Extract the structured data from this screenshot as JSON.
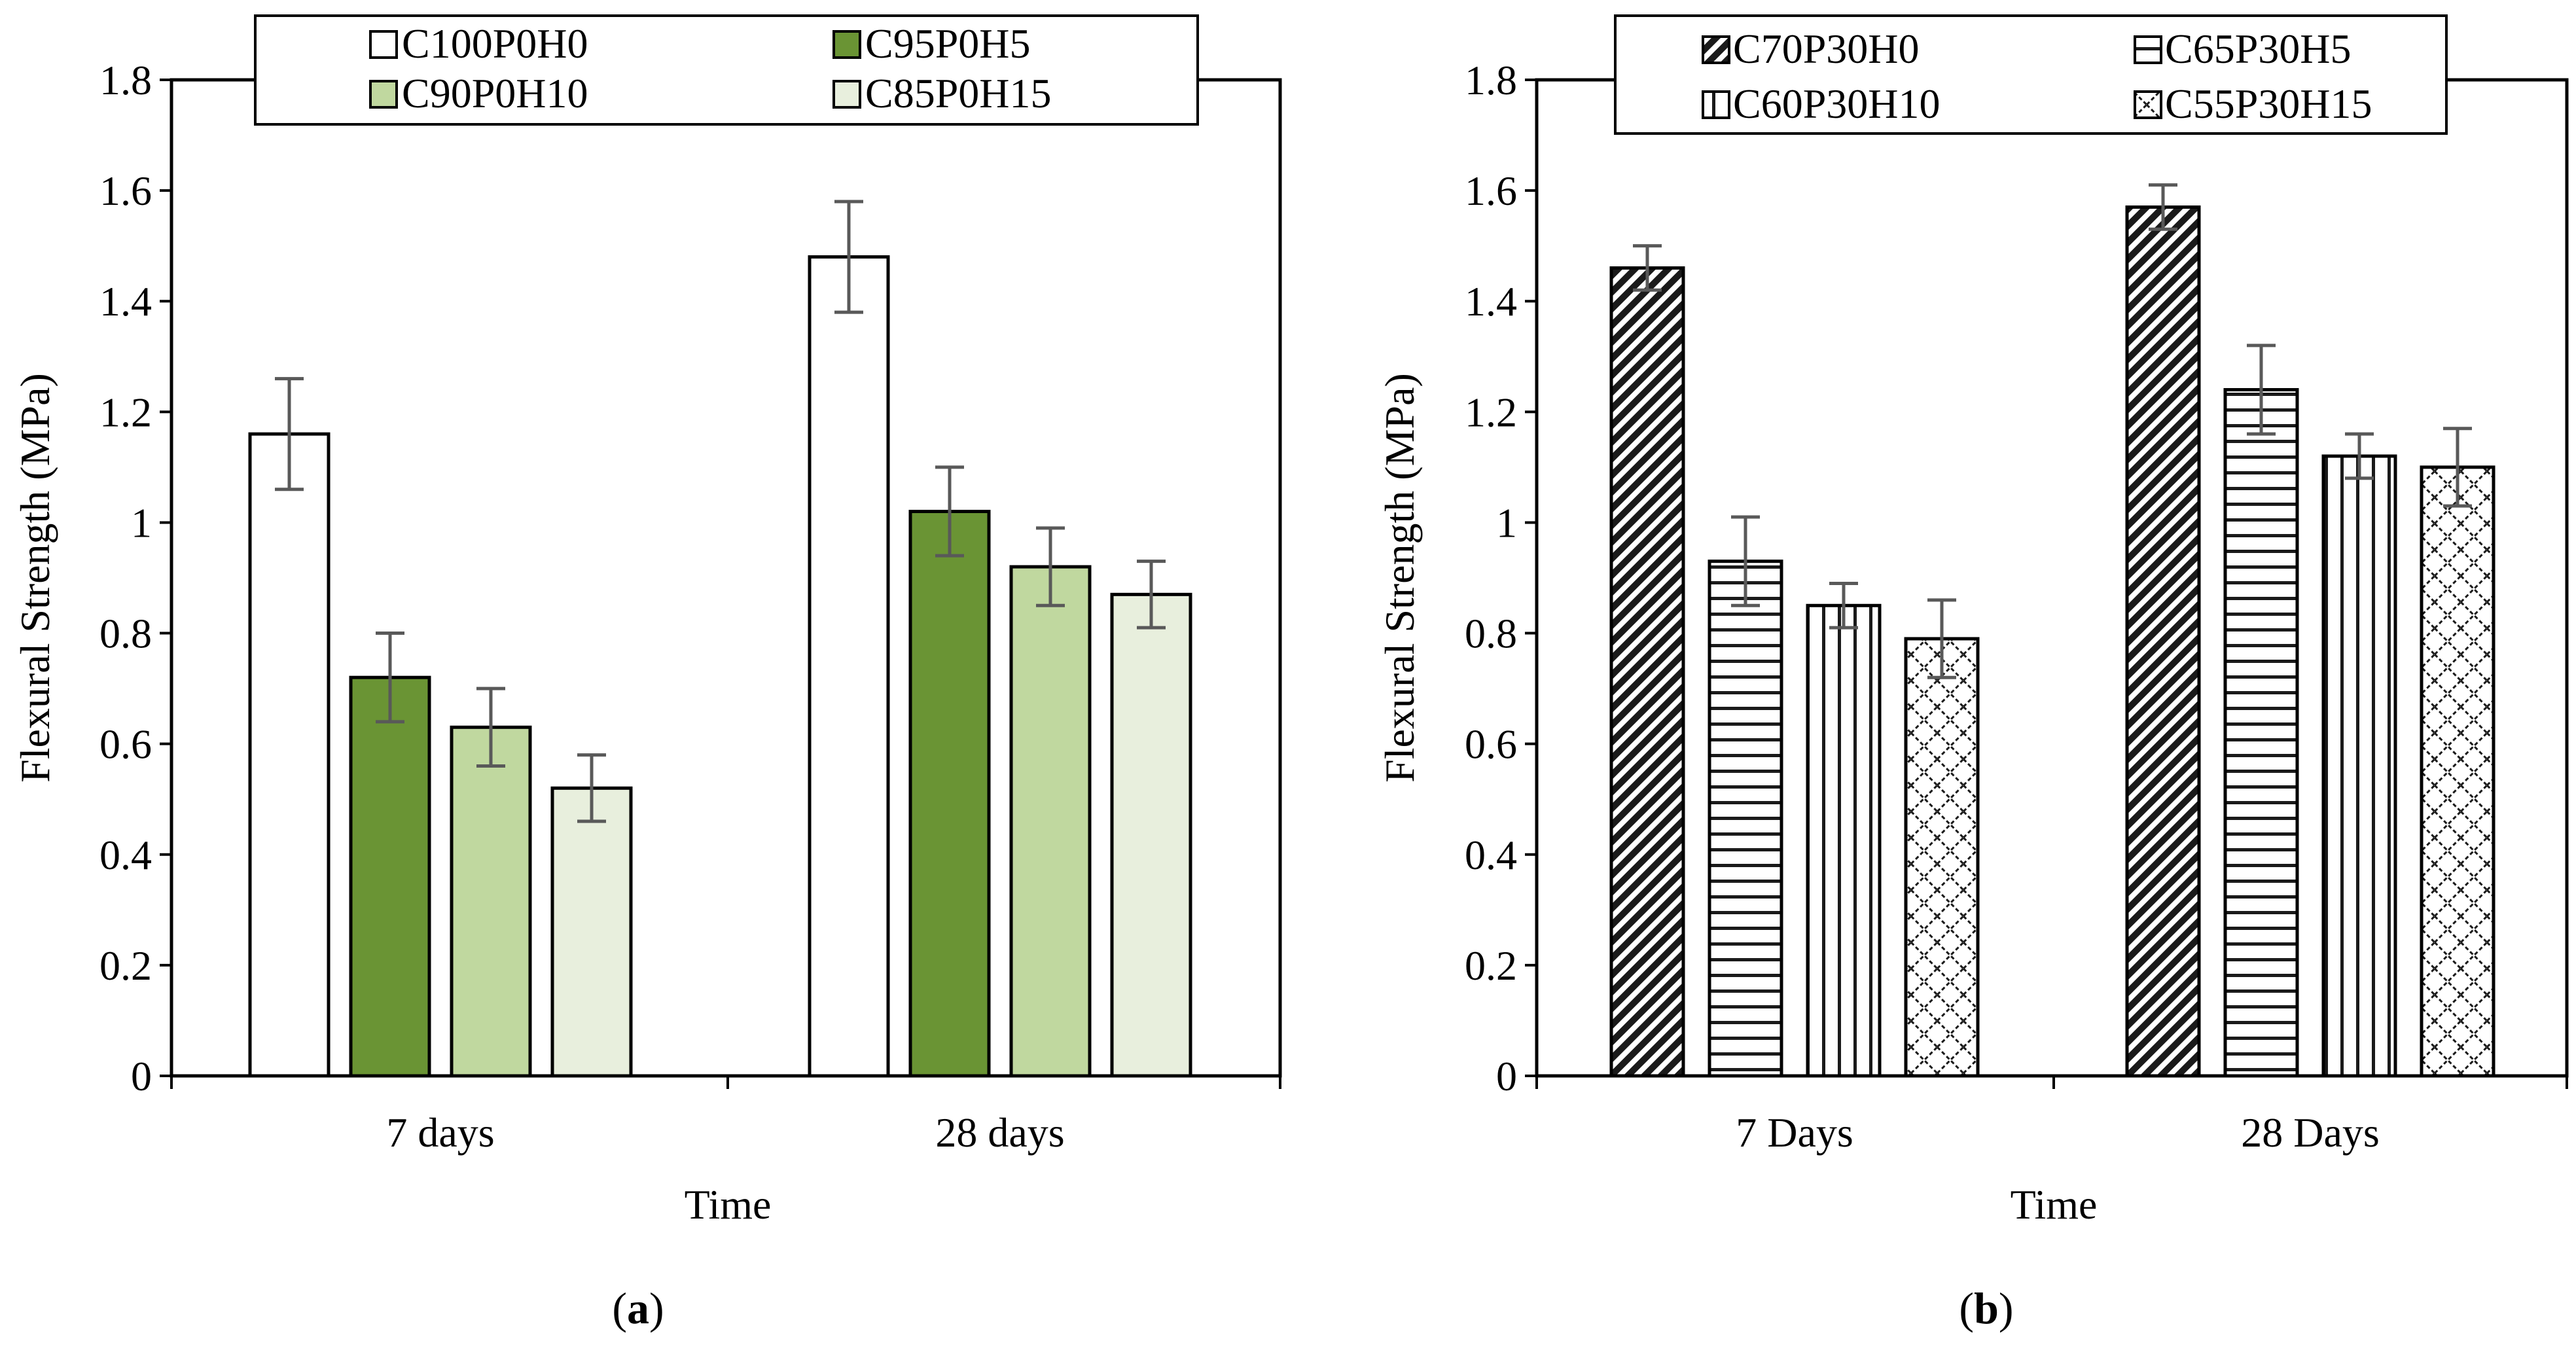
{
  "chart_data": [
    {
      "type": "bar",
      "panel_label": "a",
      "title": "",
      "xlabel": "Time",
      "ylabel": "Flexural Strength (MPa)",
      "ylim": [
        0,
        1.8
      ],
      "yticks": [
        "0",
        "0.2",
        "0.4",
        "0.6",
        "0.8",
        "1",
        "1.2",
        "1.4",
        "1.6",
        "1.8"
      ],
      "categories": [
        "7 days",
        "28 days"
      ],
      "legend_position": "top",
      "series": [
        {
          "name": "C100P0H0",
          "values": [
            1.16,
            1.48
          ],
          "errors": [
            0.1,
            0.1
          ],
          "fill": "#ffffff",
          "pattern": "solid"
        },
        {
          "name": "C95P0H5",
          "values": [
            0.72,
            1.02
          ],
          "errors": [
            0.08,
            0.08
          ],
          "fill": "#6a9434",
          "pattern": "solid"
        },
        {
          "name": "C90P0H10",
          "values": [
            0.63,
            0.92
          ],
          "errors": [
            0.07,
            0.07
          ],
          "fill": "#c0d89f",
          "pattern": "solid"
        },
        {
          "name": "C85P0H15",
          "values": [
            0.52,
            0.87
          ],
          "errors": [
            0.06,
            0.06
          ],
          "fill": "#e8efdd",
          "pattern": "solid"
        }
      ]
    },
    {
      "type": "bar",
      "panel_label": "b",
      "title": "",
      "xlabel": "Time",
      "ylabel": "Flexural Strength (MPa)",
      "ylim": [
        0,
        1.8
      ],
      "yticks": [
        "0",
        "0.2",
        "0.4",
        "0.6",
        "0.8",
        "1",
        "1.2",
        "1.4",
        "1.6",
        "1.8"
      ],
      "categories": [
        "7 Days",
        "28 Days"
      ],
      "legend_position": "top",
      "series": [
        {
          "name": "C70P30H0",
          "values": [
            1.46,
            1.57
          ],
          "errors": [
            0.04,
            0.04
          ],
          "fill": "#ffffff",
          "pattern": "diagonal"
        },
        {
          "name": "C65P30H5",
          "values": [
            0.93,
            1.24
          ],
          "errors": [
            0.08,
            0.08
          ],
          "fill": "#ffffff",
          "pattern": "horizontal"
        },
        {
          "name": "C60P30H10",
          "values": [
            0.85,
            1.12
          ],
          "errors": [
            0.04,
            0.04
          ],
          "fill": "#ffffff",
          "pattern": "vertical"
        },
        {
          "name": "C55P30H15",
          "values": [
            0.79,
            1.1
          ],
          "errors": [
            0.07,
            0.07
          ],
          "fill": "#ffffff",
          "pattern": "lattice"
        }
      ]
    }
  ]
}
